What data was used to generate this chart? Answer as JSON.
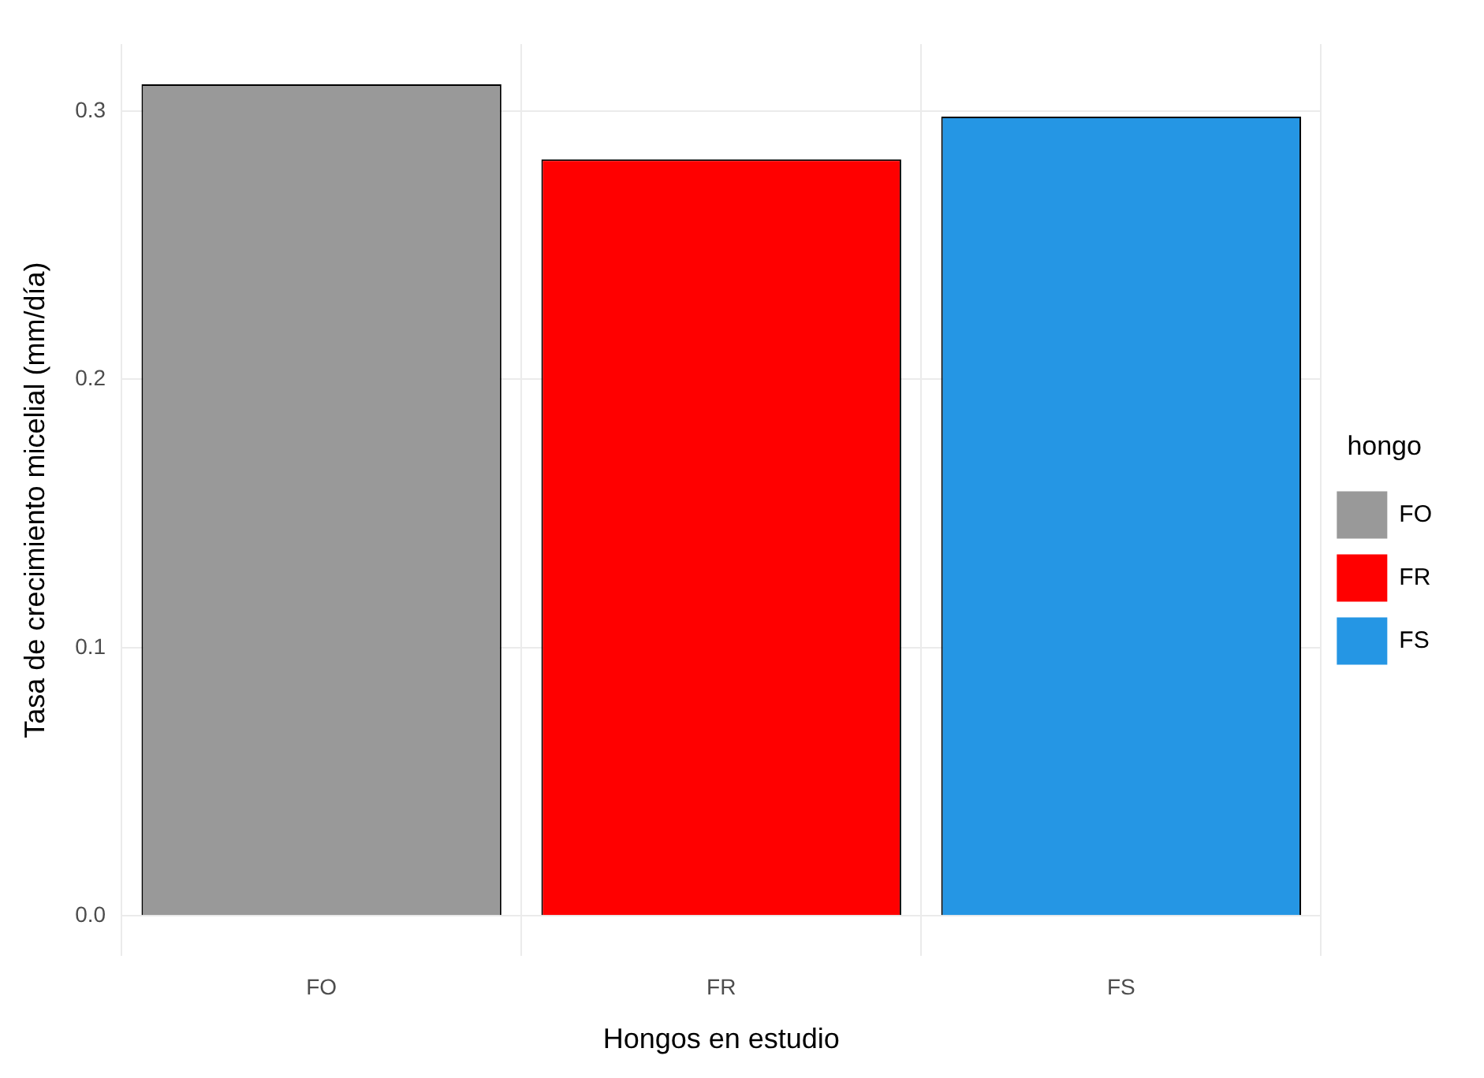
{
  "chart_data": {
    "type": "bar",
    "xlabel": "Hongos en estudio",
    "ylabel": "Tasa de crecimiento micelial (mm/día)",
    "legend_title": "hongo",
    "categories": [
      "FO",
      "FR",
      "FS"
    ],
    "series": [
      {
        "name": "FO",
        "color": "#999999",
        "values": [
          0.31,
          null,
          null
        ]
      },
      {
        "name": "FR",
        "color": "#ff0000",
        "values": [
          null,
          0.282,
          null
        ]
      },
      {
        "name": "FS",
        "color": "#2596e4",
        "values": [
          null,
          null,
          0.298
        ]
      }
    ],
    "ylim": [
      -0.015,
      0.325
    ],
    "yticks": [
      {
        "value": 0,
        "label": "0.0"
      },
      {
        "value": 0.1,
        "label": "0.1"
      },
      {
        "value": 0.2,
        "label": "0.2"
      },
      {
        "value": 0.3,
        "label": "0.3"
      }
    ],
    "grid": true,
    "legend": "right"
  }
}
